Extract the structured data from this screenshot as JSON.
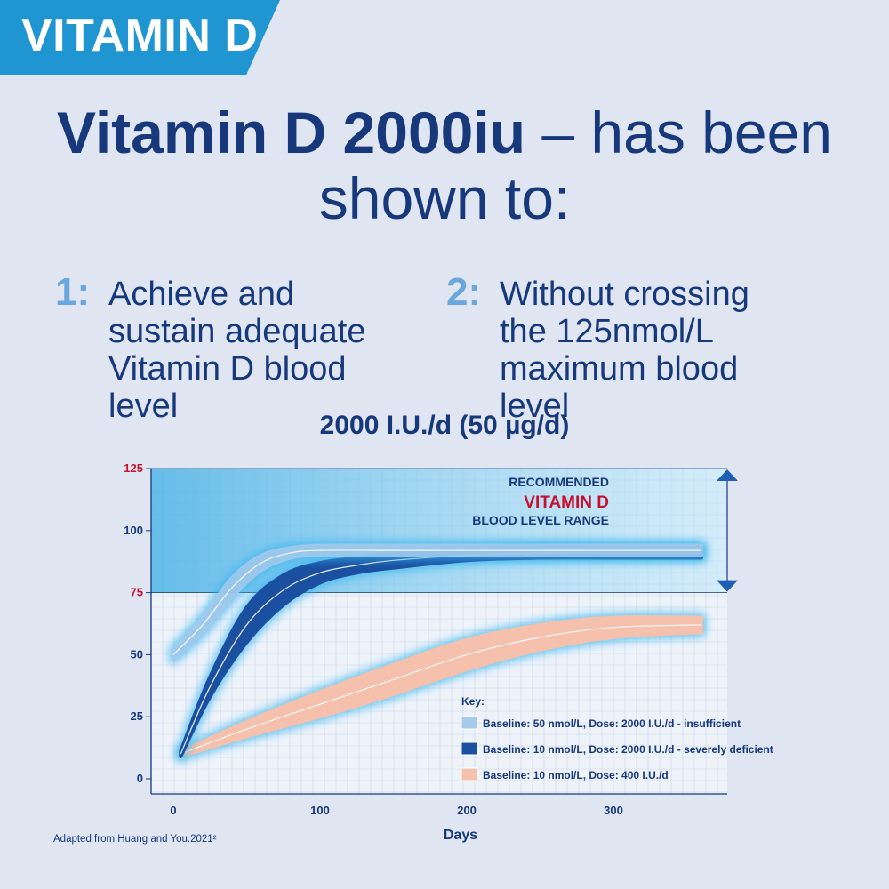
{
  "badge": {
    "label": "VITAMIN D"
  },
  "headline": {
    "bold": "Vitamin D 2000iu",
    "rest": " – has been",
    "line2": "shown to:"
  },
  "points": [
    {
      "num": "1:",
      "text": "Achieve and sustain adequate Vitamin D blood level"
    },
    {
      "num": "2:",
      "text": "Without crossing the 125nmol/L maximum blood level"
    }
  ],
  "chart_data": {
    "type": "area",
    "title": "2000 I.U./d (50 µg/d)",
    "xlabel": "Days",
    "ylabel": "",
    "xlim": [
      0,
      380
    ],
    "ylim": [
      0,
      125
    ],
    "x_ticks": [
      "0",
      "100",
      "200",
      "300"
    ],
    "y_ticks": [
      {
        "label": "0",
        "value": 0,
        "color": "#17387b"
      },
      {
        "label": "25",
        "value": 25,
        "color": "#17387b"
      },
      {
        "label": "50",
        "value": 50,
        "color": "#17387b"
      },
      {
        "label": "75",
        "value": 75,
        "color": "#c8102e"
      },
      {
        "label": "100",
        "value": 100,
        "color": "#17387b"
      },
      {
        "label": "125",
        "value": 125,
        "color": "#c8102e"
      }
    ],
    "recommended_range": {
      "low": 75,
      "high": 125,
      "label_line1": "RECOMMENDED",
      "label_line2": "VITAMIN D",
      "label_line3": "BLOOD LEVEL RANGE"
    },
    "key_title": "Key:",
    "series": [
      {
        "name": "Baseline: 50 nmol/L, Dose: 2000 I.U./d  - insufficient",
        "color": "#a7caeb",
        "x": [
          0,
          20,
          40,
          60,
          80,
          100,
          150,
          200,
          250,
          300,
          360
        ],
        "y": [
          50,
          62,
          77,
          87,
          91,
          92,
          92,
          92,
          92,
          92,
          92
        ],
        "spread": [
          2,
          3,
          4,
          3,
          2,
          2,
          2,
          2,
          2,
          2,
          2
        ]
      },
      {
        "name": "Baseline: 10 nmol/L, Dose: 2000 I.U./d - severely deficient",
        "color": "#1b4fa0",
        "x": [
          5,
          25,
          50,
          75,
          100,
          125,
          150,
          200,
          250,
          300,
          360
        ],
        "y": [
          10,
          37,
          62,
          76,
          83,
          86,
          88,
          90,
          91,
          91,
          91
        ],
        "spread": [
          1,
          4,
          7,
          6,
          4,
          3,
          3,
          2,
          2,
          2,
          2
        ]
      },
      {
        "name": "Baseline: 10 nmol/L, Dose: 400 I.U./d",
        "color": "#f5c0ac",
        "x": [
          5,
          50,
          100,
          150,
          200,
          250,
          300,
          360
        ],
        "y": [
          10,
          20,
          30,
          40,
          50,
          57,
          61,
          62
        ],
        "spread": [
          1,
          3,
          5,
          6,
          6,
          5,
          4,
          3
        ]
      }
    ]
  },
  "credit": {
    "text": "Adapted from Huang and You.2021²"
  }
}
